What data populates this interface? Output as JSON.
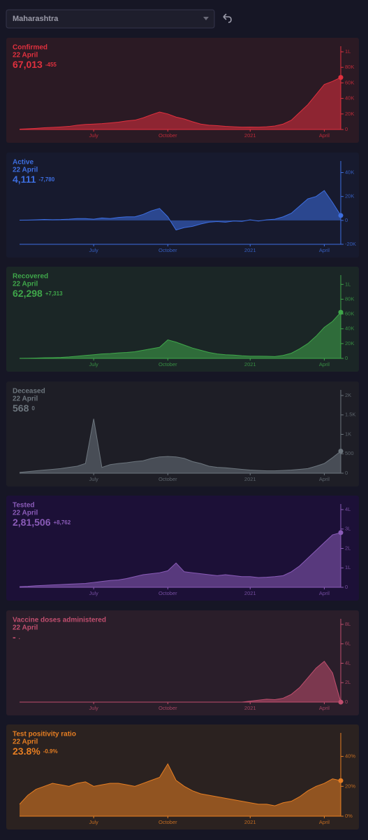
{
  "selector": "Maharashtra",
  "chart_data": [
    {
      "type": "area",
      "title": "Confirmed",
      "subtitle": "22 April",
      "headline": "67,013",
      "change": "-455",
      "color": "#e0303e",
      "background": "#2b1a24",
      "categories": [
        null,
        null,
        null,
        null,
        null,
        null,
        null,
        null,
        null,
        "July",
        null,
        null,
        null,
        null,
        null,
        null,
        null,
        null,
        "October",
        null,
        null,
        null,
        null,
        null,
        null,
        null,
        null,
        null,
        "2021",
        null,
        null,
        null,
        null,
        null,
        null,
        null,
        null,
        "April",
        null,
        null
      ],
      "values": [
        400,
        900,
        1500,
        2300,
        2700,
        3300,
        4000,
        5500,
        6500,
        7000,
        7500,
        8500,
        9500,
        11000,
        12000,
        15000,
        19000,
        22500,
        20000,
        16000,
        13500,
        10000,
        7000,
        5500,
        5000,
        4000,
        3500,
        3000,
        3200,
        3000,
        3500,
        4500,
        7000,
        12000,
        22000,
        32000,
        45000,
        58000,
        62000,
        67013
      ],
      "ylim": [
        0,
        100000
      ],
      "yticks": [
        0,
        {
          "value": 20000,
          "label": "20K"
        },
        {
          "value": 40000,
          "label": "40K"
        },
        {
          "value": 60000,
          "label": "60K"
        },
        {
          "value": 80000,
          "label": "80K"
        },
        {
          "value": 100000,
          "label": "1L"
        }
      ]
    },
    {
      "type": "area",
      "title": "Active",
      "subtitle": "22 April",
      "headline": "4,111",
      "change": "-7,780",
      "color": "#3d6ee0",
      "background": "#171a2e",
      "categories": [
        null,
        null,
        null,
        null,
        null,
        null,
        null,
        null,
        null,
        "July",
        null,
        null,
        null,
        null,
        null,
        null,
        null,
        null,
        "October",
        null,
        null,
        null,
        null,
        null,
        null,
        null,
        null,
        null,
        "2021",
        null,
        null,
        null,
        null,
        null,
        null,
        null,
        null,
        "April",
        null,
        null
      ],
      "values": [
        200,
        300,
        500,
        800,
        600,
        700,
        1000,
        1500,
        1500,
        1000,
        2000,
        1500,
        2500,
        3000,
        3000,
        5000,
        8000,
        10000,
        3000,
        -8000,
        -6000,
        -5000,
        -3000,
        -1500,
        -1000,
        -1500,
        -500,
        -800,
        500,
        -500,
        500,
        1000,
        3000,
        6000,
        12000,
        18000,
        20000,
        25000,
        15000,
        4111
      ],
      "ylim": [
        -20000,
        45000
      ],
      "yticks": [
        {
          "value": -20000,
          "label": "-20K"
        },
        0,
        {
          "value": 20000,
          "label": "20K"
        },
        {
          "value": 40000,
          "label": "40K"
        }
      ]
    },
    {
      "type": "area",
      "title": "Recovered",
      "subtitle": "22 April",
      "headline": "62,298",
      "change": "+7,313",
      "color": "#3fa64a",
      "background": "#1b2626",
      "categories": [
        null,
        null,
        null,
        null,
        null,
        null,
        null,
        null,
        null,
        "July",
        null,
        null,
        null,
        null,
        null,
        null,
        null,
        null,
        "October",
        null,
        null,
        null,
        null,
        null,
        null,
        null,
        null,
        null,
        "2021",
        null,
        null,
        null,
        null,
        null,
        null,
        null,
        null,
        "April",
        null,
        null
      ],
      "values": [
        100,
        200,
        500,
        800,
        1000,
        1300,
        2000,
        3000,
        4000,
        5000,
        6000,
        6500,
        7500,
        8000,
        9000,
        11000,
        13000,
        15000,
        25000,
        22000,
        18000,
        14000,
        11000,
        8000,
        6000,
        5000,
        4500,
        3500,
        3000,
        3000,
        2800,
        2500,
        4000,
        7000,
        13000,
        20000,
        30000,
        42000,
        50000,
        62298
      ],
      "ylim": [
        0,
        105000
      ],
      "yticks": [
        0,
        {
          "value": 20000,
          "label": "20K"
        },
        {
          "value": 40000,
          "label": "40K"
        },
        {
          "value": 60000,
          "label": "60K"
        },
        {
          "value": 80000,
          "label": "80K"
        },
        {
          "value": 100000,
          "label": "1L"
        }
      ]
    },
    {
      "type": "area",
      "title": "Deceased",
      "subtitle": "22 April",
      "headline": "568",
      "change": "0",
      "color": "#6c757d",
      "background": "#1e1e26",
      "categories": [
        null,
        null,
        null,
        null,
        null,
        null,
        null,
        null,
        null,
        "July",
        null,
        null,
        null,
        null,
        null,
        null,
        null,
        null,
        "October",
        null,
        null,
        null,
        null,
        null,
        null,
        null,
        null,
        null,
        "2021",
        null,
        null,
        null,
        null,
        null,
        null,
        null,
        null,
        "April",
        null,
        null
      ],
      "values": [
        20,
        40,
        60,
        80,
        100,
        120,
        150,
        180,
        250,
        1400,
        150,
        220,
        250,
        270,
        300,
        320,
        380,
        420,
        430,
        420,
        380,
        300,
        250,
        180,
        150,
        140,
        120,
        100,
        80,
        70,
        60,
        60,
        70,
        80,
        100,
        120,
        180,
        250,
        400,
        568
      ],
      "ylim": [
        0,
        2000
      ],
      "yticks": [
        0,
        500,
        {
          "value": 1000,
          "label": "1K"
        },
        {
          "value": 1500,
          "label": "1.5K"
        },
        {
          "value": 2000,
          "label": "2K"
        }
      ]
    },
    {
      "type": "area",
      "title": "Tested",
      "subtitle": "22 April",
      "headline": "2,81,506",
      "change": "+8,762",
      "color": "#8a5bb8",
      "background": "#1c1037",
      "categories": [
        null,
        null,
        null,
        null,
        null,
        null,
        null,
        null,
        null,
        "July",
        null,
        null,
        null,
        null,
        null,
        null,
        null,
        null,
        "October",
        null,
        null,
        null,
        null,
        null,
        null,
        null,
        null,
        null,
        "2021",
        null,
        null,
        null,
        null,
        null,
        null,
        null,
        null,
        "April",
        null,
        null
      ],
      "values": [
        3000,
        5000,
        8000,
        10000,
        12000,
        14000,
        16000,
        18000,
        20000,
        25000,
        30000,
        35000,
        38000,
        45000,
        55000,
        65000,
        70000,
        75000,
        85000,
        125000,
        80000,
        75000,
        70000,
        65000,
        60000,
        65000,
        60000,
        55000,
        55000,
        50000,
        52000,
        55000,
        60000,
        80000,
        110000,
        150000,
        190000,
        230000,
        270000,
        281506
      ],
      "ylim": [
        0,
        400000
      ],
      "yticks": [
        0,
        {
          "value": 100000,
          "label": "1L"
        },
        {
          "value": 200000,
          "label": "2L"
        },
        {
          "value": 300000,
          "label": "3L"
        },
        {
          "value": 400000,
          "label": "4L"
        }
      ]
    },
    {
      "type": "area",
      "title": "Vaccine doses administered",
      "subtitle": "22 April",
      "headline": "-",
      "change": ".",
      "color": "#c04e6e",
      "background": "#2a1e2a",
      "categories": [
        null,
        null,
        null,
        null,
        null,
        null,
        null,
        null,
        null,
        "July",
        null,
        null,
        null,
        null,
        null,
        null,
        null,
        null,
        "October",
        null,
        null,
        null,
        null,
        null,
        null,
        null,
        null,
        null,
        "2021",
        null,
        null,
        null,
        null,
        null,
        null,
        null,
        null,
        "April",
        null,
        null
      ],
      "values": [
        0,
        0,
        0,
        0,
        0,
        0,
        0,
        0,
        0,
        0,
        0,
        0,
        0,
        0,
        0,
        0,
        0,
        0,
        0,
        0,
        0,
        0,
        0,
        0,
        0,
        0,
        0,
        0,
        10000,
        20000,
        30000,
        25000,
        40000,
        80000,
        150000,
        250000,
        350000,
        420000,
        300000,
        0
      ],
      "ylim": [
        0,
        800000
      ],
      "yticks": [
        0,
        {
          "value": 200000,
          "label": "2L"
        },
        {
          "value": 400000,
          "label": "4L"
        },
        {
          "value": 600000,
          "label": "6L"
        },
        {
          "value": 800000,
          "label": "8L"
        }
      ]
    },
    {
      "type": "area",
      "title": "Test positivity ratio",
      "subtitle": "22 April",
      "headline": "23.8%",
      "change": "-0.9%",
      "color": "#e67e22",
      "background": "#2b2220",
      "categories": [
        null,
        null,
        null,
        null,
        null,
        null,
        null,
        null,
        null,
        "July",
        null,
        null,
        null,
        null,
        null,
        null,
        null,
        null,
        "October",
        null,
        null,
        null,
        null,
        null,
        null,
        null,
        null,
        null,
        "2021",
        null,
        null,
        null,
        null,
        null,
        null,
        null,
        null,
        "April",
        null,
        null
      ],
      "values": [
        8,
        14,
        18,
        20,
        22,
        21,
        20,
        22,
        23,
        20,
        21,
        22,
        22,
        21,
        20,
        22,
        24,
        26,
        35,
        24,
        20,
        17,
        15,
        14,
        13,
        12,
        11,
        10,
        9,
        8,
        8,
        7,
        9,
        10,
        13,
        17,
        20,
        22,
        25,
        23.8
      ],
      "ylim": [
        0,
        52
      ],
      "yticks": [
        {
          "value": 0,
          "label": "0%"
        },
        {
          "value": 20,
          "label": "20%"
        },
        {
          "value": 40,
          "label": "40%"
        }
      ]
    }
  ]
}
